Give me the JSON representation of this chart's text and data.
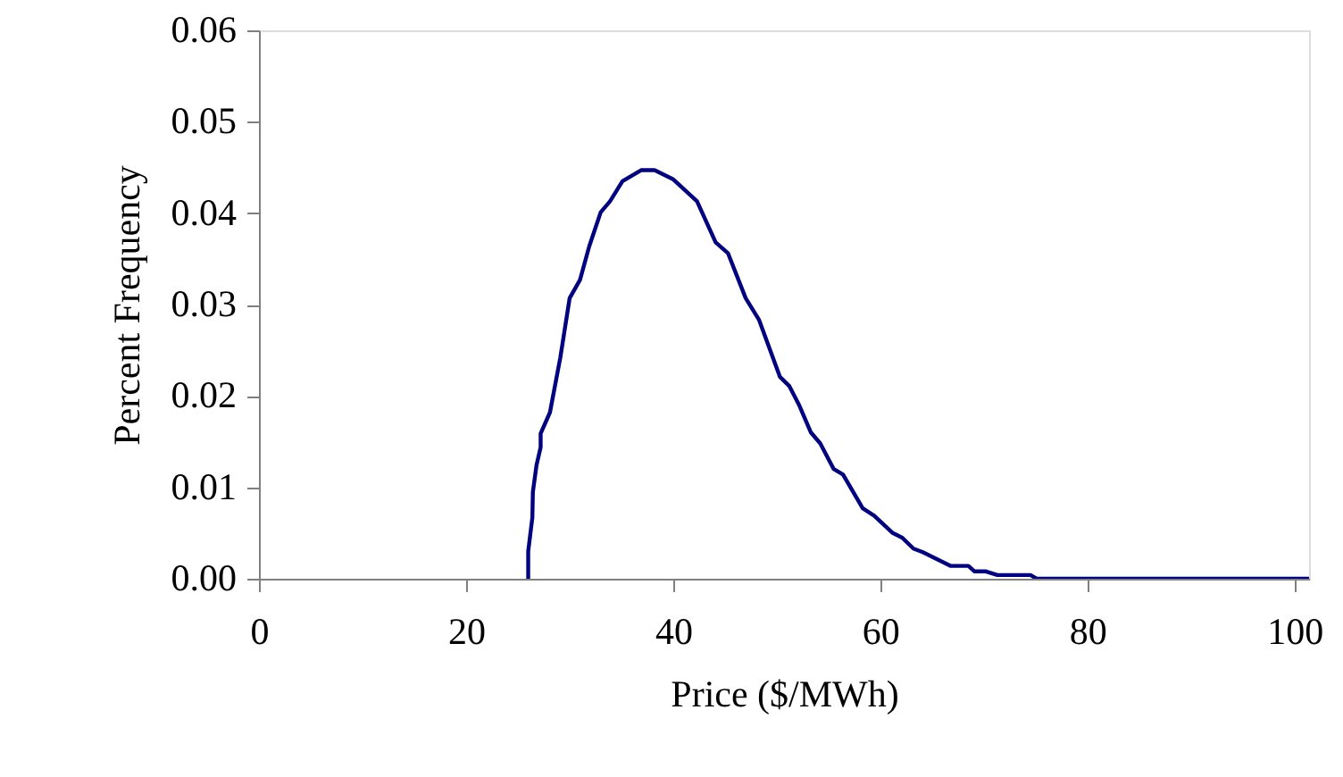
{
  "chart_data": {
    "type": "line",
    "xlabel": "Price ($/MWh)",
    "ylabel": "Percent Frequency",
    "xlim": [
      0,
      101.4
    ],
    "xticks": [
      0,
      20,
      40,
      60,
      80,
      100
    ],
    "ylim": [
      0,
      0.06
    ],
    "yticks": [
      {
        "value": 0,
        "label": "0.00"
      },
      0.01,
      0.02,
      0.03,
      0.04,
      0.05,
      0.06
    ],
    "grid": false,
    "marker": "none",
    "line_style": "solid",
    "series": [
      {
        "color": "#000080",
        "x": [
          26.0,
          26.0,
          26.4,
          26.45,
          26.8,
          27.2,
          27.2,
          28.1,
          29.1,
          30.0,
          31.0,
          31.9,
          33.0,
          33.9,
          35.1,
          36.9,
          38.2,
          40.0,
          42.3,
          44.1,
          45.3,
          47.0,
          48.3,
          50.3,
          51.2,
          52.2,
          53.3,
          54.2,
          55.5,
          56.4,
          58.3,
          59.4,
          61.2,
          62.1,
          63.2,
          64.1,
          66.8,
          68.5,
          69.1,
          70.2,
          71.3,
          74.5,
          75.1,
          101.4
        ],
        "values": [
          0,
          0.003,
          0.0067,
          0.0095,
          0.0124,
          0.0144,
          0.0159,
          0.0182,
          0.0242,
          0.0307,
          0.0327,
          0.0364,
          0.0401,
          0.0413,
          0.0435,
          0.0447,
          0.0447,
          0.0437,
          0.0413,
          0.0368,
          0.0356,
          0.0307,
          0.0283,
          0.0221,
          0.0211,
          0.0189,
          0.016,
          0.0148,
          0.012,
          0.0114,
          0.0077,
          0.0069,
          0.005,
          0.0045,
          0.0033,
          0.0029,
          0.0014,
          0.0014,
          0.0008,
          0.0008,
          0.0004,
          0.0004,
          0,
          0
        ]
      }
    ]
  }
}
